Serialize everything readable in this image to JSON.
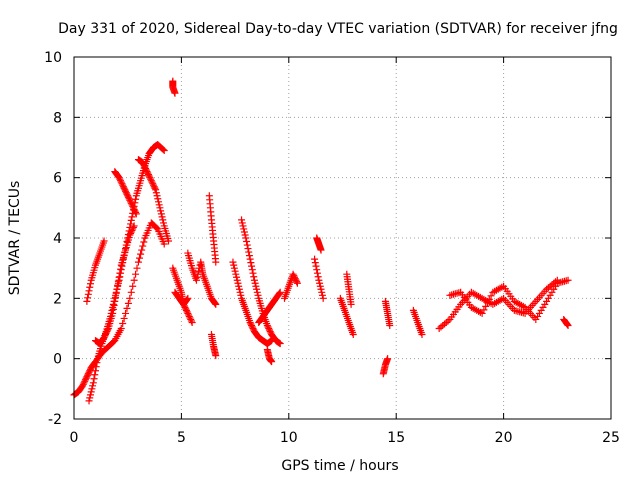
{
  "chart_data": {
    "type": "scatter",
    "title": "Day 331 of 2020, Sidereal Day-to-day VTEC variation (SDTVAR) for receiver jfng",
    "xlabel": "GPS time / hours",
    "ylabel": "SDTVAR / TECUs",
    "xlim": [
      0,
      25
    ],
    "ylim": [
      -2,
      10
    ],
    "x_ticks": [
      0,
      5,
      10,
      15,
      20,
      25
    ],
    "y_ticks": [
      -2,
      0,
      2,
      4,
      6,
      8,
      10
    ],
    "grid": true,
    "marker": "+",
    "color": "#ff0000",
    "series": [
      {
        "name": "seg1",
        "x": [
          0.0,
          0.2,
          0.4,
          0.6,
          0.8,
          1.0,
          1.3,
          1.6,
          1.9,
          2.2,
          2.6,
          3.0,
          3.3,
          3.6,
          3.9,
          4.2
        ],
        "y": [
          -1.2,
          -1.1,
          -0.9,
          -0.6,
          -0.3,
          -0.1,
          0.2,
          0.4,
          0.6,
          1.0,
          2.0,
          3.2,
          4.0,
          4.5,
          4.3,
          3.8
        ]
      },
      {
        "name": "seg2",
        "x": [
          0.7,
          0.9,
          1.1,
          1.3,
          1.5,
          1.7,
          1.9,
          2.1,
          2.3,
          2.5,
          2.7,
          2.9,
          3.1,
          3.3,
          3.5,
          3.7,
          3.9,
          4.2
        ],
        "y": [
          -1.4,
          -0.8,
          0.0,
          0.5,
          0.9,
          1.4,
          2.0,
          2.6,
          3.3,
          4.0,
          4.7,
          5.4,
          5.9,
          6.4,
          6.8,
          7.0,
          7.1,
          6.9
        ]
      },
      {
        "name": "seg3",
        "x": [
          0.6,
          0.8,
          1.0,
          1.2,
          1.4
        ],
        "y": [
          1.9,
          2.6,
          3.1,
          3.5,
          3.9
        ]
      },
      {
        "name": "seg4",
        "x": [
          1.0,
          1.2,
          1.4,
          1.6,
          1.8,
          2.0,
          2.2,
          2.4,
          2.6,
          2.8
        ],
        "y": [
          0.6,
          0.5,
          0.7,
          1.0,
          1.5,
          2.3,
          3.1,
          3.6,
          4.1,
          4.4
        ]
      },
      {
        "name": "seg5",
        "x": [
          1.9,
          2.1,
          2.3,
          2.5,
          2.7,
          2.9
        ],
        "y": [
          6.2,
          6.0,
          5.7,
          5.4,
          5.1,
          4.8
        ]
      },
      {
        "name": "seg6",
        "x": [
          3.0,
          3.2,
          3.4,
          3.6,
          3.8,
          4.0,
          4.2,
          4.4
        ],
        "y": [
          6.6,
          6.5,
          6.2,
          5.9,
          5.6,
          5.0,
          4.4,
          3.9
        ]
      },
      {
        "name": "seg7",
        "x": [
          4.6,
          4.6,
          4.7
        ],
        "y": [
          9.2,
          9.0,
          8.8
        ]
      },
      {
        "name": "seg8",
        "x": [
          4.6,
          4.8,
          5.0,
          5.1,
          5.3,
          5.5
        ],
        "y": [
          3.0,
          2.6,
          2.2,
          1.8,
          1.5,
          1.2
        ]
      },
      {
        "name": "seg9",
        "x": [
          4.7,
          4.9,
          5.1,
          5.3
        ],
        "y": [
          2.2,
          2.0,
          1.8,
          2.0
        ]
      },
      {
        "name": "seg10",
        "x": [
          5.3,
          5.5,
          5.7,
          5.9,
          6.0,
          6.2,
          6.4,
          6.6
        ],
        "y": [
          3.5,
          3.0,
          2.6,
          3.2,
          2.8,
          2.4,
          2.0,
          1.8
        ]
      },
      {
        "name": "seg11",
        "x": [
          6.3,
          6.4,
          6.5,
          6.6
        ],
        "y": [
          5.4,
          4.6,
          3.9,
          3.2
        ]
      },
      {
        "name": "seg12",
        "x": [
          6.4,
          6.5,
          6.6
        ],
        "y": [
          0.8,
          0.4,
          0.1
        ]
      },
      {
        "name": "seg13",
        "x": [
          7.4,
          7.6,
          7.8,
          8.0,
          8.2,
          8.4,
          8.6,
          8.8,
          9.0,
          9.2
        ],
        "y": [
          3.2,
          2.6,
          2.0,
          1.6,
          1.2,
          0.9,
          0.7,
          0.6,
          0.5,
          0.6
        ]
      },
      {
        "name": "seg14",
        "x": [
          7.8,
          8.0,
          8.2,
          8.4,
          8.6,
          8.8,
          9.0,
          9.2,
          9.4,
          9.6
        ],
        "y": [
          4.6,
          4.0,
          3.3,
          2.6,
          2.0,
          1.5,
          1.1,
          0.8,
          0.6,
          0.5
        ]
      },
      {
        "name": "seg15",
        "x": [
          8.6,
          8.8,
          9.0,
          9.2,
          9.4,
          9.6
        ],
        "y": [
          1.2,
          1.4,
          1.6,
          1.8,
          2.0,
          2.2
        ]
      },
      {
        "name": "seg16",
        "x": [
          9.0,
          9.1,
          9.2
        ],
        "y": [
          0.3,
          0.0,
          -0.1
        ]
      },
      {
        "name": "seg17",
        "x": [
          9.8,
          10.0,
          10.2,
          10.4
        ],
        "y": [
          2.0,
          2.4,
          2.8,
          2.5
        ]
      },
      {
        "name": "seg18",
        "x": [
          11.3,
          11.4,
          11.5
        ],
        "y": [
          4.0,
          3.8,
          3.6
        ]
      },
      {
        "name": "seg19",
        "x": [
          11.2,
          11.4,
          11.6
        ],
        "y": [
          3.3,
          2.6,
          2.0
        ]
      },
      {
        "name": "seg20",
        "x": [
          12.4,
          12.6,
          12.8,
          13.0
        ],
        "y": [
          2.0,
          1.6,
          1.2,
          0.8
        ]
      },
      {
        "name": "seg21",
        "x": [
          12.7,
          12.8,
          12.9
        ],
        "y": [
          2.8,
          2.3,
          1.8
        ]
      },
      {
        "name": "seg22",
        "x": [
          14.5,
          14.6,
          14.7
        ],
        "y": [
          1.9,
          1.5,
          1.1
        ]
      },
      {
        "name": "seg23",
        "x": [
          14.4,
          14.5,
          14.6
        ],
        "y": [
          -0.5,
          -0.2,
          0.0
        ]
      },
      {
        "name": "seg24",
        "x": [
          15.8,
          16.0,
          16.2
        ],
        "y": [
          1.6,
          1.2,
          0.8
        ]
      },
      {
        "name": "seg25",
        "x": [
          17.0,
          17.5,
          18.0,
          18.5,
          19.0,
          19.5,
          20.0,
          20.5,
          21.0,
          21.5,
          22.0,
          22.5
        ],
        "y": [
          1.0,
          1.3,
          1.8,
          2.2,
          2.0,
          1.8,
          2.0,
          1.6,
          1.5,
          1.9,
          2.3,
          2.6
        ]
      },
      {
        "name": "seg26",
        "x": [
          17.5,
          18.0,
          18.5,
          19.0,
          19.5,
          20.0,
          20.5,
          21.0,
          21.5,
          22.0,
          22.5,
          23.0
        ],
        "y": [
          2.1,
          2.2,
          1.7,
          1.5,
          2.2,
          2.4,
          1.9,
          1.7,
          1.3,
          1.9,
          2.5,
          2.6
        ]
      },
      {
        "name": "seg27",
        "x": [
          22.8,
          23.0
        ],
        "y": [
          1.3,
          1.1
        ]
      }
    ]
  }
}
